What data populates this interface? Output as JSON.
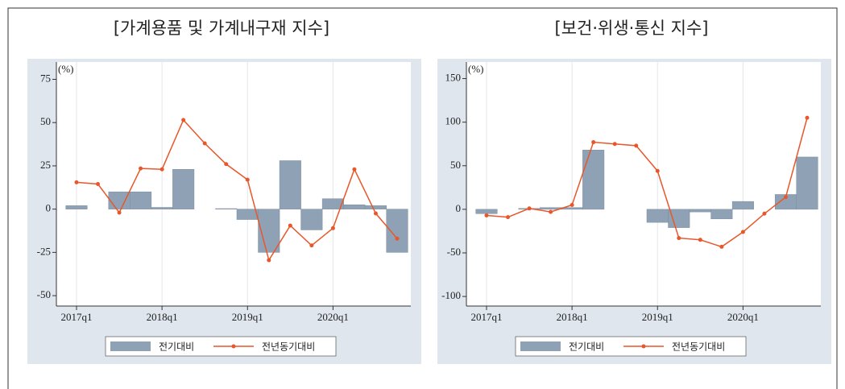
{
  "chart_data": [
    {
      "type": "combo",
      "title": "[가계용품 및 가계내구재 지수]",
      "y_label": "(%)",
      "categories": [
        "2017q1",
        null,
        null,
        null,
        "2018q1",
        null,
        null,
        null,
        "2019q1",
        null,
        null,
        null,
        "2020q1",
        null,
        null,
        null
      ],
      "series": [
        {
          "name": "전기대비",
          "type": "bar",
          "color": "#8fa2b5",
          "values": [
            2,
            0,
            10,
            10,
            1,
            23,
            0,
            0.3,
            -6,
            -25,
            28,
            -12,
            6,
            2.5,
            2,
            -25
          ]
        },
        {
          "name": "전년동기대비",
          "type": "line",
          "color": "#e8572a",
          "values": [
            15.5,
            14.5,
            -2,
            23.5,
            23,
            51.5,
            38,
            26,
            17,
            -29.5,
            -9.5,
            -21,
            -11,
            23,
            -2.5,
            -17
          ]
        }
      ],
      "ylim": [
        -56,
        85
      ],
      "yticks": [
        -50,
        -25,
        0,
        25,
        50,
        75
      ],
      "grid": true
    },
    {
      "type": "combo",
      "title": "[보건·위생·통신 지수]",
      "y_label": "(%)",
      "categories": [
        "2017q1",
        null,
        null,
        null,
        "2018q1",
        null,
        null,
        null,
        "2019q1",
        null,
        null,
        null,
        "2020q1",
        null,
        null,
        null
      ],
      "series": [
        {
          "name": "전기대비",
          "type": "bar",
          "color": "#8fa2b5",
          "values": [
            -5,
            0,
            1,
            2,
            2,
            68,
            0,
            0,
            -15,
            -21,
            -3,
            -11,
            9,
            0,
            17,
            60
          ]
        },
        {
          "name": "전년동기대비",
          "type": "line",
          "color": "#e8572a",
          "values": [
            -7,
            -9,
            1,
            -3,
            5,
            77,
            75,
            73,
            44,
            -33,
            -35,
            -43,
            -26,
            -5,
            14,
            105
          ]
        }
      ],
      "ylim": [
        -111,
        169
      ],
      "yticks": [
        -100,
        -50,
        0,
        50,
        100,
        150
      ],
      "grid": true
    }
  ]
}
